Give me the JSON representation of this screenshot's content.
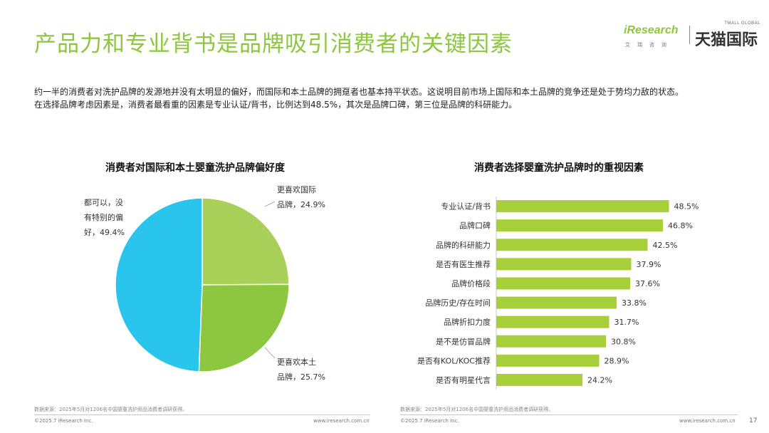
{
  "header": {
    "title": "产品力和专业背书是品牌吸引消费者的关键因素",
    "logo_ir_name": "iResearch",
    "logo_ir_sub": "艾瑞咨询",
    "logo_tmall_small": "TMALL GLOBAL",
    "logo_tmall_big": "天猫国际"
  },
  "description": [
    "约一半的消费者对洗护品牌的发源地并没有太明显的偏好，而国际和本土品牌的拥趸者也基本持平状态。这说明目前市场上国际和本土品牌的竞争还是处于势均力敌的状态。",
    "在选择品牌考虑因素是，消费者最看重的因素是专业认证/背书，比例达到48.5%，其次是品牌口碑，第三位是品牌的科研能力。"
  ],
  "colors": {
    "accent": "#8dc63f",
    "pie_neutral": "#29c5ec",
    "pie_intl": "#a9d15a",
    "pie_domestic": "#8dc63f",
    "bar": "#a6cf3a"
  },
  "chart_data": [
    {
      "type": "pie",
      "title": "消费者对国际和本土婴童洗护品牌偏好度",
      "slices": [
        {
          "label": "更喜欢国际品牌",
          "label_lines": [
            "更喜欢国际",
            "品牌，24.9%"
          ],
          "value": 24.9
        },
        {
          "label": "更喜欢本土品牌",
          "label_lines": [
            "更喜欢本土",
            "品牌，25.7%"
          ],
          "value": 25.7
        },
        {
          "label": "都可以，没有特别的偏好",
          "label_lines": [
            "都可以，没",
            "有特别的偏",
            "好，49.4%"
          ],
          "value": 49.4
        }
      ]
    },
    {
      "type": "bar",
      "orientation": "horizontal",
      "title": "消费者选择婴童洗护品牌时的重视因素",
      "categories": [
        "专业认证/背书",
        "品牌口碑",
        "品牌的科研能力",
        "是否有医生推荐",
        "品牌价格段",
        "品牌历史/存在时间",
        "品牌折扣力度",
        "是不是仿冒品牌",
        "是否有KOL/KOC推荐",
        "是否有明星代言"
      ],
      "values": [
        48.5,
        46.8,
        42.5,
        37.9,
        37.6,
        33.8,
        31.7,
        30.8,
        28.9,
        24.2
      ],
      "value_labels": [
        "48.5%",
        "46.8%",
        "42.5%",
        "37.9%",
        "37.6%",
        "33.8%",
        "31.7%",
        "30.8%",
        "28.9%",
        "24.2%"
      ],
      "unit": "%",
      "xlim": [
        0,
        50
      ]
    }
  ],
  "footer": {
    "source_left": "数据来源：2025年5月对1206名中国婴童洗护用品消费者调研获得。",
    "source_right": "数据来源：2025年5月对1206名中国婴童洗护用品消费者调研获得。",
    "copyright_left": "©2025.7 iResearch Inc.",
    "url_left": "www.iresearch.com.cn",
    "copyright_right": "©2025.7 iResearch Inc.",
    "url_right": "www.iresearch.com.cn",
    "page_number": "17"
  }
}
